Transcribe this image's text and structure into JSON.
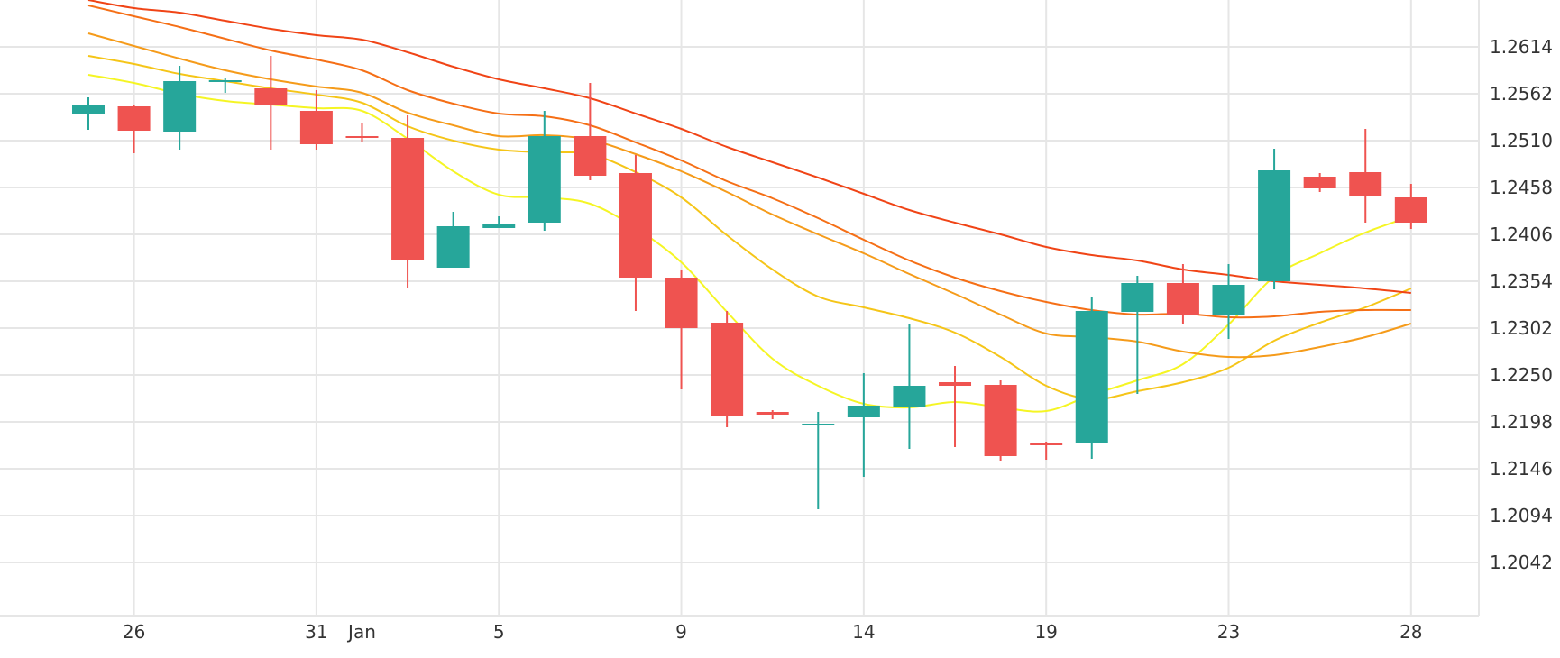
{
  "chart_data": {
    "type": "candlestick",
    "title": "",
    "xlabel": "",
    "ylabel": "",
    "ylim": [
      1.199,
      1.268
    ],
    "y_ticks": [
      1.2042,
      1.2094,
      1.2146,
      1.2198,
      1.225,
      1.2302,
      1.2354,
      1.2406,
      1.2458,
      1.251,
      1.2562,
      1.2614
    ],
    "y_tick_labels": [
      "1.2042",
      "1.2094",
      "1.2146",
      "1.2198",
      "1.2250",
      "1.2302",
      "1.2354",
      "1.2406",
      "1.2458",
      "1.2510",
      "1.2562",
      "1.2614"
    ],
    "x_ticks": [
      {
        "label": "26",
        "index": 1
      },
      {
        "label": "31",
        "index": 5
      },
      {
        "label": "Jan",
        "index": 6
      },
      {
        "label": "5",
        "index": 9
      },
      {
        "label": "9",
        "index": 13
      },
      {
        "label": "14",
        "index": 17
      },
      {
        "label": "19",
        "index": 21
      },
      {
        "label": "23",
        "index": 25
      },
      {
        "label": "28",
        "index": 29
      }
    ],
    "up_color": "#26a69a",
    "down_color": "#ef5350",
    "candles": [
      {
        "o": 1.254,
        "h": 1.2558,
        "l": 1.2522,
        "c": 1.255
      },
      {
        "o": 1.2548,
        "h": 1.255,
        "l": 1.2496,
        "c": 1.2521
      },
      {
        "o": 1.252,
        "h": 1.2593,
        "l": 1.25,
        "c": 1.2576
      },
      {
        "o": 1.2577,
        "h": 1.258,
        "l": 1.2563,
        "c": 1.2577
      },
      {
        "o": 1.2568,
        "h": 1.2604,
        "l": 1.25,
        "c": 1.2549
      },
      {
        "o": 1.2543,
        "h": 1.2566,
        "l": 1.25,
        "c": 1.2506
      },
      {
        "o": 1.2515,
        "h": 1.2529,
        "l": 1.2508,
        "c": 1.2514
      },
      {
        "o": 1.2513,
        "h": 1.2538,
        "l": 1.2346,
        "c": 1.2378
      },
      {
        "o": 1.2369,
        "h": 1.2431,
        "l": 1.2369,
        "c": 1.2415
      },
      {
        "o": 1.2413,
        "h": 1.2426,
        "l": 1.2413,
        "c": 1.2418
      },
      {
        "o": 1.2419,
        "h": 1.2543,
        "l": 1.241,
        "c": 1.2515
      },
      {
        "o": 1.2515,
        "h": 1.2574,
        "l": 1.2466,
        "c": 1.2471
      },
      {
        "o": 1.2474,
        "h": 1.2494,
        "l": 1.2321,
        "c": 1.2358
      },
      {
        "o": 1.2358,
        "h": 1.2367,
        "l": 1.2234,
        "c": 1.2302
      },
      {
        "o": 1.2308,
        "h": 1.2321,
        "l": 1.2192,
        "c": 1.2204
      },
      {
        "o": 1.2209,
        "h": 1.2211,
        "l": 1.2201,
        "c": 1.2206
      },
      {
        "o": 1.2194,
        "h": 1.2209,
        "l": 1.2101,
        "c": 1.2196
      },
      {
        "o": 1.2203,
        "h": 1.2252,
        "l": 1.2137,
        "c": 1.2216
      },
      {
        "o": 1.2214,
        "h": 1.2306,
        "l": 1.2168,
        "c": 1.2238
      },
      {
        "o": 1.2242,
        "h": 1.226,
        "l": 1.217,
        "c": 1.2238
      },
      {
        "o": 1.2239,
        "h": 1.2244,
        "l": 1.2155,
        "c": 1.216
      },
      {
        "o": 1.2175,
        "h": 1.2176,
        "l": 1.2156,
        "c": 1.2172
      },
      {
        "o": 1.2174,
        "h": 1.2336,
        "l": 1.2157,
        "c": 1.2321
      },
      {
        "o": 1.232,
        "h": 1.236,
        "l": 1.2229,
        "c": 1.2352
      },
      {
        "o": 1.2352,
        "h": 1.2373,
        "l": 1.2306,
        "c": 1.2316
      },
      {
        "o": 1.2317,
        "h": 1.2373,
        "l": 1.229,
        "c": 1.235
      },
      {
        "o": 1.2354,
        "h": 1.2501,
        "l": 1.2345,
        "c": 1.2477
      },
      {
        "o": 1.247,
        "h": 1.2474,
        "l": 1.2453,
        "c": 1.2457
      },
      {
        "o": 1.2475,
        "h": 1.2523,
        "l": 1.2419,
        "c": 1.2448
      },
      {
        "o": 1.2447,
        "h": 1.2462,
        "l": 1.2412,
        "c": 1.2419
      }
    ],
    "moving_averages": [
      {
        "color": "#f5f524",
        "values": [
          1.2583,
          1.2574,
          1.2562,
          1.2554,
          1.255,
          1.2546,
          1.2543,
          1.2512,
          1.2476,
          1.245,
          1.2447,
          1.244,
          1.2413,
          1.2375,
          1.232,
          1.2268,
          1.2238,
          1.2218,
          1.2214,
          1.222,
          1.2214,
          1.221,
          1.2228,
          1.2244,
          1.2262,
          1.2306,
          1.2359,
          1.2385,
          1.2408,
          1.2426
        ]
      },
      {
        "color": "#f5c518",
        "values": [
          1.2604,
          1.2595,
          1.2584,
          1.2576,
          1.2568,
          1.2561,
          1.2552,
          1.2526,
          1.251,
          1.25,
          1.2497,
          1.2495,
          1.2475,
          1.2447,
          1.2405,
          1.2367,
          1.2337,
          1.2325,
          1.2313,
          1.2297,
          1.227,
          1.2238,
          1.2223,
          1.2232,
          1.2242,
          1.2258,
          1.2288,
          1.2308,
          1.2325,
          1.2346
        ]
      },
      {
        "color": "#f59b1a",
        "values": [
          1.2629,
          1.2615,
          1.2601,
          1.2588,
          1.2578,
          1.257,
          1.2563,
          1.2541,
          1.2527,
          1.2515,
          1.2516,
          1.2511,
          1.2495,
          1.2476,
          1.2453,
          1.2428,
          1.2406,
          1.2385,
          1.2362,
          1.234,
          1.2317,
          1.2296,
          1.2292,
          1.2287,
          1.2276,
          1.227,
          1.2272,
          1.2281,
          1.2292,
          1.2307
        ]
      },
      {
        "color": "#f56f16",
        "values": [
          1.266,
          1.2648,
          1.2636,
          1.2623,
          1.261,
          1.26,
          1.2588,
          1.2566,
          1.2551,
          1.254,
          1.2537,
          1.2527,
          1.2508,
          1.2488,
          1.2465,
          1.2446,
          1.2424,
          1.24,
          1.2377,
          1.2358,
          1.2343,
          1.2331,
          1.2322,
          1.2317,
          1.2318,
          1.2314,
          1.2315,
          1.232,
          1.2322,
          1.2322
        ]
      },
      {
        "color": "#f04416",
        "values": [
          1.2666,
          1.2657,
          1.2652,
          1.2643,
          1.2634,
          1.2627,
          1.2622,
          1.2608,
          1.2592,
          1.2578,
          1.2568,
          1.2557,
          1.254,
          1.2523,
          1.2503,
          1.2486,
          1.2469,
          1.2451,
          1.2433,
          1.2419,
          1.2406,
          1.2392,
          1.2383,
          1.2377,
          1.2367,
          1.2361,
          1.2354,
          1.235,
          1.2346,
          1.2341
        ]
      }
    ]
  }
}
